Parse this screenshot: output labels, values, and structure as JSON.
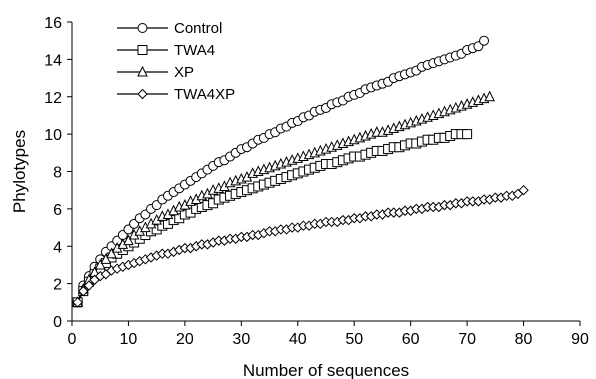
{
  "chart_data": {
    "type": "line",
    "title": "",
    "xlabel": "Number of sequences",
    "ylabel": "Phylotypes",
    "xlim": [
      0,
      90
    ],
    "ylim": [
      0,
      16
    ],
    "xticks": [
      0,
      10,
      20,
      30,
      40,
      50,
      60,
      70,
      80,
      90
    ],
    "yticks": [
      0,
      2,
      4,
      6,
      8,
      10,
      12,
      14,
      16
    ],
    "grid": false,
    "legend_position": "top-left",
    "series": [
      {
        "name": "Control",
        "marker": "circle",
        "x": [
          1,
          2,
          3,
          4,
          5,
          6,
          7,
          8,
          9,
          10,
          11,
          12,
          13,
          14,
          15,
          16,
          17,
          18,
          19,
          20,
          21,
          22,
          23,
          24,
          25,
          26,
          27,
          28,
          29,
          30,
          31,
          32,
          33,
          34,
          35,
          36,
          37,
          38,
          39,
          40,
          41,
          42,
          43,
          44,
          45,
          46,
          47,
          48,
          49,
          50,
          51,
          52,
          53,
          54,
          55,
          56,
          57,
          58,
          59,
          60,
          61,
          62,
          63,
          64,
          65,
          66,
          67,
          68,
          69,
          70,
          71,
          72,
          73
        ],
        "y": [
          1.0,
          1.9,
          2.4,
          2.9,
          3.3,
          3.7,
          4.0,
          4.3,
          4.6,
          4.9,
          5.2,
          5.5,
          5.7,
          6.0,
          6.2,
          6.5,
          6.7,
          6.9,
          7.1,
          7.3,
          7.5,
          7.7,
          7.9,
          8.1,
          8.3,
          8.5,
          8.6,
          8.8,
          9.0,
          9.2,
          9.3,
          9.5,
          9.7,
          9.8,
          10.0,
          10.1,
          10.3,
          10.4,
          10.6,
          10.7,
          10.9,
          11.0,
          11.2,
          11.3,
          11.4,
          11.6,
          11.7,
          11.8,
          12.0,
          12.1,
          12.2,
          12.4,
          12.5,
          12.6,
          12.7,
          12.8,
          13.0,
          13.1,
          13.2,
          13.3,
          13.4,
          13.6,
          13.7,
          13.8,
          13.9,
          14.0,
          14.1,
          14.2,
          14.3,
          14.5,
          14.6,
          14.7,
          15.0
        ]
      },
      {
        "name": "TWA4",
        "marker": "square",
        "x": [
          1,
          2,
          3,
          4,
          5,
          6,
          7,
          8,
          9,
          10,
          11,
          12,
          13,
          14,
          15,
          16,
          17,
          18,
          19,
          20,
          21,
          22,
          23,
          24,
          25,
          26,
          27,
          28,
          29,
          30,
          31,
          32,
          33,
          34,
          35,
          36,
          37,
          38,
          39,
          40,
          41,
          42,
          43,
          44,
          45,
          46,
          47,
          48,
          49,
          50,
          51,
          52,
          53,
          54,
          55,
          56,
          57,
          58,
          59,
          60,
          61,
          62,
          63,
          64,
          65,
          66,
          67,
          68,
          69,
          70
        ],
        "y": [
          1.0,
          1.6,
          2.1,
          2.5,
          2.8,
          3.1,
          3.4,
          3.6,
          3.8,
          4.0,
          4.2,
          4.4,
          4.6,
          4.8,
          4.9,
          5.1,
          5.2,
          5.4,
          5.5,
          5.7,
          5.8,
          6.0,
          6.1,
          6.2,
          6.3,
          6.5,
          6.6,
          6.7,
          6.8,
          6.9,
          7.0,
          7.1,
          7.2,
          7.3,
          7.4,
          7.5,
          7.6,
          7.7,
          7.8,
          7.9,
          8.0,
          8.1,
          8.2,
          8.3,
          8.4,
          8.4,
          8.5,
          8.6,
          8.7,
          8.8,
          8.8,
          8.9,
          9.0,
          9.1,
          9.1,
          9.2,
          9.3,
          9.3,
          9.4,
          9.5,
          9.5,
          9.6,
          9.7,
          9.7,
          9.8,
          9.8,
          9.9,
          10.0,
          10.0,
          10.0
        ]
      },
      {
        "name": "XP",
        "marker": "triangle",
        "x": [
          1,
          2,
          3,
          4,
          5,
          6,
          7,
          8,
          9,
          10,
          11,
          12,
          13,
          14,
          15,
          16,
          17,
          18,
          19,
          20,
          21,
          22,
          23,
          24,
          25,
          26,
          27,
          28,
          29,
          30,
          31,
          32,
          33,
          34,
          35,
          36,
          37,
          38,
          39,
          40,
          41,
          42,
          43,
          44,
          45,
          46,
          47,
          48,
          49,
          50,
          51,
          52,
          53,
          54,
          55,
          56,
          57,
          58,
          59,
          60,
          61,
          62,
          63,
          64,
          65,
          66,
          67,
          68,
          69,
          70,
          71,
          72,
          73,
          74
        ],
        "y": [
          1.0,
          1.7,
          2.2,
          2.6,
          3.0,
          3.3,
          3.6,
          3.9,
          4.1,
          4.3,
          4.6,
          4.8,
          5.0,
          5.2,
          5.4,
          5.6,
          5.7,
          5.9,
          6.1,
          6.2,
          6.4,
          6.5,
          6.7,
          6.8,
          7.0,
          7.1,
          7.2,
          7.4,
          7.5,
          7.6,
          7.7,
          7.9,
          8.0,
          8.1,
          8.2,
          8.3,
          8.4,
          8.5,
          8.6,
          8.7,
          8.8,
          8.9,
          9.0,
          9.1,
          9.2,
          9.3,
          9.4,
          9.5,
          9.6,
          9.7,
          9.8,
          9.9,
          10.0,
          10.1,
          10.1,
          10.2,
          10.3,
          10.4,
          10.5,
          10.6,
          10.7,
          10.8,
          10.9,
          11.0,
          11.1,
          11.2,
          11.3,
          11.4,
          11.5,
          11.6,
          11.7,
          11.8,
          11.9,
          12.0
        ]
      },
      {
        "name": "TWA4XP",
        "marker": "diamond",
        "x": [
          1,
          2,
          3,
          4,
          5,
          6,
          7,
          8,
          9,
          10,
          11,
          12,
          13,
          14,
          15,
          16,
          17,
          18,
          19,
          20,
          21,
          22,
          23,
          24,
          25,
          26,
          27,
          28,
          29,
          30,
          31,
          32,
          33,
          34,
          35,
          36,
          37,
          38,
          39,
          40,
          41,
          42,
          43,
          44,
          45,
          46,
          47,
          48,
          49,
          50,
          51,
          52,
          53,
          54,
          55,
          56,
          57,
          58,
          59,
          60,
          61,
          62,
          63,
          64,
          65,
          66,
          67,
          68,
          69,
          70,
          71,
          72,
          73,
          74,
          75,
          76,
          77,
          78,
          79,
          80
        ],
        "y": [
          1.0,
          1.6,
          1.9,
          2.2,
          2.4,
          2.5,
          2.7,
          2.8,
          2.9,
          3.0,
          3.1,
          3.2,
          3.3,
          3.4,
          3.5,
          3.6,
          3.6,
          3.7,
          3.8,
          3.9,
          3.9,
          4.0,
          4.1,
          4.1,
          4.2,
          4.3,
          4.3,
          4.4,
          4.4,
          4.5,
          4.5,
          4.6,
          4.6,
          4.7,
          4.8,
          4.8,
          4.9,
          4.9,
          5.0,
          5.0,
          5.1,
          5.1,
          5.2,
          5.2,
          5.3,
          5.3,
          5.3,
          5.4,
          5.4,
          5.5,
          5.5,
          5.6,
          5.6,
          5.7,
          5.7,
          5.8,
          5.8,
          5.8,
          5.9,
          5.9,
          6.0,
          6.0,
          6.1,
          6.1,
          6.1,
          6.2,
          6.2,
          6.3,
          6.3,
          6.4,
          6.4,
          6.4,
          6.5,
          6.5,
          6.6,
          6.6,
          6.7,
          6.7,
          6.8,
          7.0
        ]
      }
    ]
  }
}
